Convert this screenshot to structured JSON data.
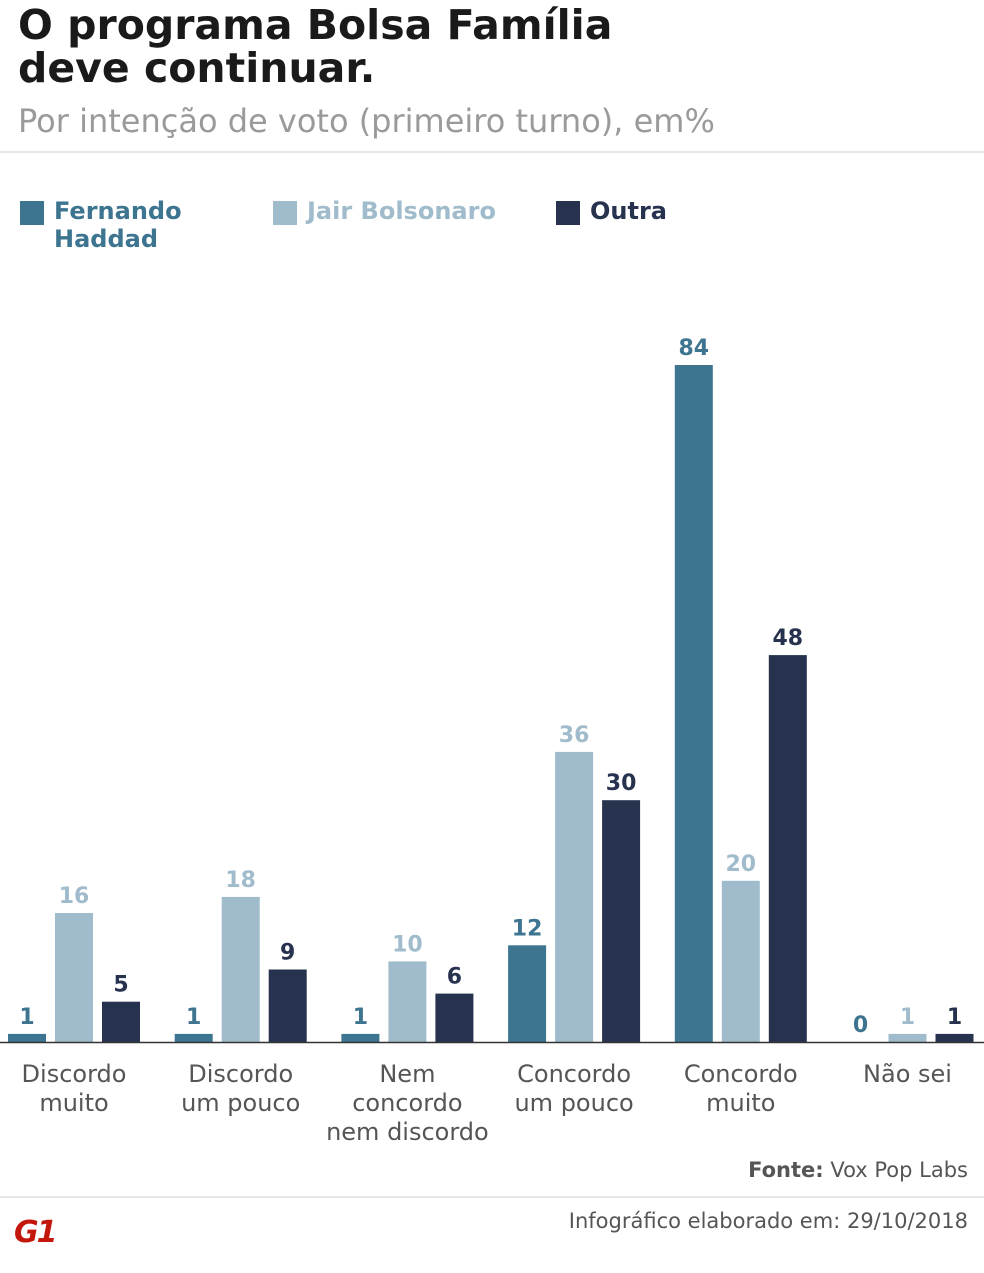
{
  "header": {
    "title_line1": "O programa Bolsa Família",
    "title_line2": "deve continuar.",
    "subtitle": "Por intenção de voto (primeiro turno), em%"
  },
  "colors": {
    "haddad": "#3d7490",
    "bolsonaro": "#a0bccc",
    "outra": "#26324e",
    "axis": "#333333"
  },
  "chart_data": {
    "type": "bar",
    "title": "O programa Bolsa Família deve continuar.",
    "subtitle": "Por intenção de voto (primeiro turno), em%",
    "categories": [
      [
        "Discordo",
        "muito"
      ],
      [
        "Discordo",
        "um pouco"
      ],
      [
        "Nem",
        "concordo",
        "nem discordo"
      ],
      [
        "Concordo",
        "um pouco"
      ],
      [
        "Concordo",
        "muito"
      ],
      [
        "Não sei"
      ]
    ],
    "series": [
      {
        "name": "Fernando Haddad",
        "legend_lines": [
          "Fernando",
          "Haddad"
        ],
        "color": "#3d7490",
        "values": [
          1,
          1,
          1,
          12,
          84,
          0
        ]
      },
      {
        "name": "Jair Bolsonaro",
        "legend_lines": [
          "Jair Bolsonaro"
        ],
        "color": "#a0bccc",
        "values": [
          16,
          18,
          10,
          36,
          20,
          1
        ]
      },
      {
        "name": "Outra",
        "legend_lines": [
          "Outra"
        ],
        "color": "#26324e",
        "values": [
          5,
          9,
          6,
          30,
          48,
          1
        ]
      }
    ],
    "ylim": [
      0,
      84
    ],
    "grid": false,
    "legend_position": "top-left"
  },
  "footer": {
    "source_label": "Fonte:",
    "source_value": "Vox Pop Labs",
    "note_label": "Infográfico elaborado em:",
    "note_date": "29/10/2018",
    "logo_text": "G1"
  }
}
